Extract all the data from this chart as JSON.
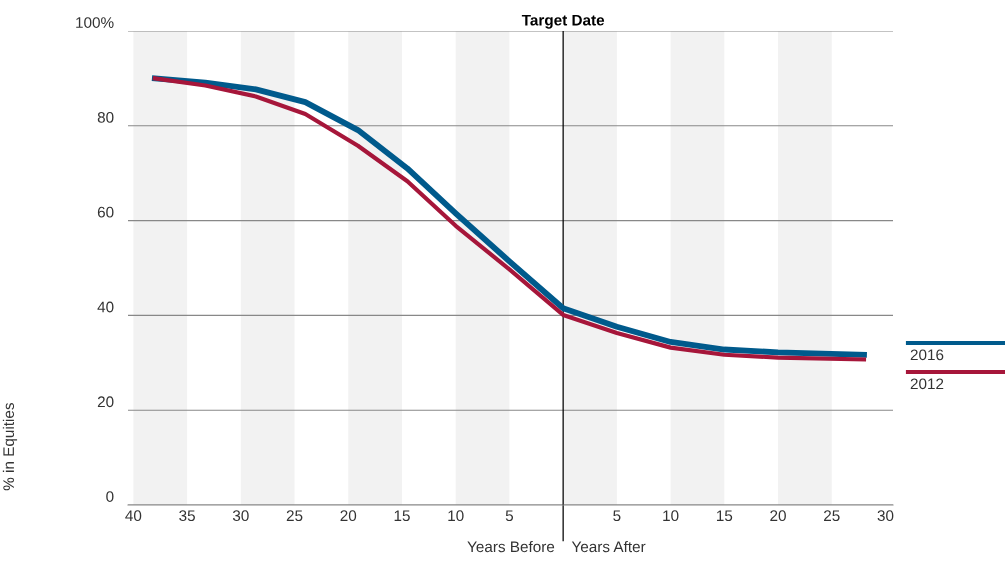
{
  "chart_data": {
    "type": "line",
    "ylabel": "% in Equities",
    "xlim": [
      -40.5,
      30.7
    ],
    "ylim": [
      0,
      100
    ],
    "xticks": [
      {
        "value": -40,
        "label": "40"
      },
      {
        "value": -35,
        "label": "35"
      },
      {
        "value": -30,
        "label": "30"
      },
      {
        "value": -25,
        "label": "25"
      },
      {
        "value": -20,
        "label": "20"
      },
      {
        "value": -15,
        "label": "15"
      },
      {
        "value": -10,
        "label": "10"
      },
      {
        "value": -5,
        "label": "5"
      },
      5,
      10,
      15,
      20,
      25,
      30
    ],
    "yticks": [
      0,
      20,
      40,
      60,
      80,
      {
        "value": 100,
        "label": "100%"
      }
    ],
    "grid": "y",
    "legend": "right",
    "marker": "none",
    "line_style": "solid",
    "series": [
      {
        "name": "2016",
        "color": "#005a8c",
        "x": [
          -38,
          -33.3,
          -28.6,
          -24,
          -19.1,
          -14.5,
          -10,
          -5,
          0,
          5,
          10,
          15,
          20,
          28
        ],
        "values": [
          90,
          89.1,
          87.7,
          85,
          79.1,
          71,
          61.5,
          51.4,
          41.5,
          37.6,
          34.4,
          32.8,
          32.2,
          31.7
        ]
      },
      {
        "name": "2012",
        "color": "#a6163a",
        "x": [
          -38,
          -33.3,
          -28.6,
          -24,
          -19.1,
          -14.5,
          -10,
          -5,
          0,
          5,
          10,
          15,
          20,
          28
        ],
        "values": [
          90,
          88.5,
          86.2,
          82.5,
          75.8,
          68.3,
          58.9,
          49.7,
          40.1,
          36.3,
          33.2,
          31.7,
          31.1,
          30.7
        ]
      }
    ],
    "ref_lines": [
      {
        "axis": "x",
        "value": 0,
        "label": "Target Date",
        "color": "#000000"
      }
    ],
    "bands": [
      {
        "axis": "x",
        "from": -40,
        "to": -35,
        "color": "#f2f2f2"
      },
      {
        "axis": "x",
        "from": -30,
        "to": -25,
        "color": "#f2f2f2"
      },
      {
        "axis": "x",
        "from": -20,
        "to": -15,
        "color": "#f2f2f2"
      },
      {
        "axis": "x",
        "from": -10,
        "to": -5,
        "color": "#f2f2f2"
      },
      {
        "axis": "x",
        "from": 0,
        "to": 5,
        "color": "#f2f2f2"
      },
      {
        "axis": "x",
        "from": 10,
        "to": 15,
        "color": "#f2f2f2"
      },
      {
        "axis": "x",
        "from": 20,
        "to": 25,
        "color": "#f2f2f2"
      }
    ],
    "annotations": [
      "Years Before",
      "Years After"
    ]
  }
}
